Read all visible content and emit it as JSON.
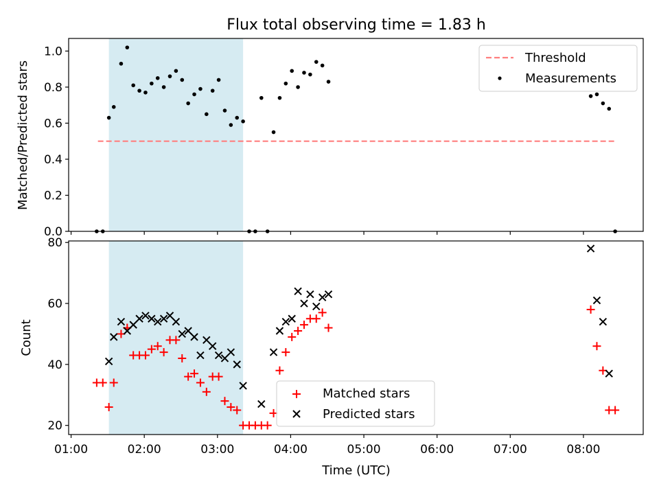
{
  "title": "Flux total observing time = 1.83 h",
  "chart_data": [
    {
      "type": "scatter",
      "panel": "top",
      "ylabel": "Matched/Predicted stars",
      "xlabel": "",
      "xlim": [
        "00:58",
        "08:49"
      ],
      "ylim": [
        0,
        1.07
      ],
      "yticks": [
        0.0,
        0.2,
        0.4,
        0.6,
        0.8,
        1.0
      ],
      "ytick_labels": [
        "0.0",
        "0.2",
        "0.4",
        "0.6",
        "0.8",
        "1.0"
      ],
      "shaded_interval": [
        "01:31",
        "03:21"
      ],
      "shade_color": "#add8e6",
      "legend_position": "upper right",
      "legend": [
        {
          "label": "Threshold",
          "style": "dashed-line",
          "color": "#ff7f7f"
        },
        {
          "label": "Measurements",
          "style": "dot",
          "color": "#000000"
        }
      ],
      "threshold": {
        "name": "Threshold",
        "value": 0.5,
        "x_start": "01:22",
        "x_end": "08:26",
        "color": "#ff7f7f"
      },
      "series": [
        {
          "name": "Measurements",
          "color": "#000000",
          "points": [
            [
              "01:21",
              0
            ],
            [
              "01:26",
              0
            ],
            [
              "01:31",
              0.63
            ],
            [
              "01:35",
              0.69
            ],
            [
              "01:41",
              0.93
            ],
            [
              "01:46",
              1.02
            ],
            [
              "01:51",
              0.81
            ],
            [
              "01:56",
              0.78
            ],
            [
              "02:01",
              0.77
            ],
            [
              "02:06",
              0.82
            ],
            [
              "02:11",
              0.85
            ],
            [
              "02:16",
              0.8
            ],
            [
              "02:21",
              0.86
            ],
            [
              "02:26",
              0.89
            ],
            [
              "02:31",
              0.84
            ],
            [
              "02:36",
              0.71
            ],
            [
              "02:41",
              0.76
            ],
            [
              "02:46",
              0.79
            ],
            [
              "02:51",
              0.65
            ],
            [
              "02:56",
              0.78
            ],
            [
              "03:01",
              0.84
            ],
            [
              "03:06",
              0.67
            ],
            [
              "03:11",
              0.59
            ],
            [
              "03:16",
              0.63
            ],
            [
              "03:21",
              0.61
            ],
            [
              "03:26",
              0
            ],
            [
              "03:31",
              0
            ],
            [
              "03:36",
              0.74
            ],
            [
              "03:41",
              0
            ],
            [
              "03:46",
              0.55
            ],
            [
              "03:51",
              0.74
            ],
            [
              "03:56",
              0.82
            ],
            [
              "04:01",
              0.89
            ],
            [
              "04:06",
              0.8
            ],
            [
              "04:11",
              0.88
            ],
            [
              "04:16",
              0.87
            ],
            [
              "04:21",
              0.94
            ],
            [
              "04:26",
              0.92
            ],
            [
              "04:31",
              0.83
            ],
            [
              "08:06",
              0.75
            ],
            [
              "08:11",
              0.76
            ],
            [
              "08:16",
              0.71
            ],
            [
              "08:21",
              0.68
            ],
            [
              "08:26",
              0
            ]
          ]
        }
      ]
    },
    {
      "type": "scatter",
      "panel": "bottom",
      "ylabel": "Count",
      "xlabel": "Time (UTC)",
      "xlim": [
        "00:58",
        "08:49"
      ],
      "ylim": [
        17,
        80.5
      ],
      "yticks": [
        20,
        40,
        60,
        80
      ],
      "ytick_labels": [
        "20",
        "40",
        "60",
        "80"
      ],
      "xticks": [
        "01:00",
        "02:00",
        "03:00",
        "04:00",
        "05:00",
        "06:00",
        "07:00",
        "08:00"
      ],
      "shaded_interval": [
        "01:31",
        "03:21"
      ],
      "shade_color": "#add8e6",
      "legend_position": "lower center",
      "legend": [
        {
          "label": "Matched stars",
          "style": "plus",
          "color": "#ff0000"
        },
        {
          "label": "Predicted stars",
          "style": "x",
          "color": "#000000"
        }
      ],
      "series": [
        {
          "name": "Matched stars",
          "marker": "+",
          "color": "#ff0000",
          "points": [
            [
              "01:21",
              34
            ],
            [
              "01:26",
              34
            ],
            [
              "01:31",
              26
            ],
            [
              "01:35",
              34
            ],
            [
              "01:41",
              50
            ],
            [
              "01:46",
              52
            ],
            [
              "01:51",
              43
            ],
            [
              "01:56",
              43
            ],
            [
              "02:01",
              43
            ],
            [
              "02:06",
              45
            ],
            [
              "02:11",
              46
            ],
            [
              "02:16",
              44
            ],
            [
              "02:21",
              48
            ],
            [
              "02:26",
              48
            ],
            [
              "02:31",
              42
            ],
            [
              "02:36",
              36
            ],
            [
              "02:41",
              37
            ],
            [
              "02:46",
              34
            ],
            [
              "02:51",
              31
            ],
            [
              "02:56",
              36
            ],
            [
              "03:01",
              36
            ],
            [
              "03:06",
              28
            ],
            [
              "03:11",
              26
            ],
            [
              "03:16",
              25
            ],
            [
              "03:21",
              20
            ],
            [
              "03:26",
              20
            ],
            [
              "03:31",
              20
            ],
            [
              "03:36",
              20
            ],
            [
              "03:41",
              20
            ],
            [
              "03:46",
              24
            ],
            [
              "03:51",
              38
            ],
            [
              "03:56",
              44
            ],
            [
              "04:01",
              49
            ],
            [
              "04:06",
              51
            ],
            [
              "04:11",
              53
            ],
            [
              "04:16",
              55
            ],
            [
              "04:21",
              55
            ],
            [
              "04:26",
              57
            ],
            [
              "04:31",
              52
            ],
            [
              "08:06",
              58
            ],
            [
              "08:11",
              46
            ],
            [
              "08:16",
              38
            ],
            [
              "08:21",
              25
            ],
            [
              "08:26",
              25
            ]
          ]
        },
        {
          "name": "Predicted stars",
          "marker": "x",
          "color": "#000000",
          "points": [
            [
              "01:31",
              41
            ],
            [
              "01:35",
              49
            ],
            [
              "01:41",
              54
            ],
            [
              "01:46",
              51
            ],
            [
              "01:51",
              53
            ],
            [
              "01:56",
              55
            ],
            [
              "02:01",
              56
            ],
            [
              "02:06",
              55
            ],
            [
              "02:11",
              54
            ],
            [
              "02:16",
              55
            ],
            [
              "02:21",
              56
            ],
            [
              "02:26",
              54
            ],
            [
              "02:31",
              50
            ],
            [
              "02:36",
              51
            ],
            [
              "02:41",
              49
            ],
            [
              "02:46",
              43
            ],
            [
              "02:51",
              48
            ],
            [
              "02:56",
              46
            ],
            [
              "03:01",
              43
            ],
            [
              "03:06",
              42
            ],
            [
              "03:11",
              44
            ],
            [
              "03:16",
              40
            ],
            [
              "03:21",
              33
            ],
            [
              "03:36",
              27
            ],
            [
              "03:46",
              44
            ],
            [
              "03:51",
              51
            ],
            [
              "03:56",
              54
            ],
            [
              "04:01",
              55
            ],
            [
              "04:06",
              64
            ],
            [
              "04:11",
              60
            ],
            [
              "04:16",
              63
            ],
            [
              "04:21",
              59
            ],
            [
              "04:26",
              62
            ],
            [
              "04:31",
              63
            ],
            [
              "08:06",
              78
            ],
            [
              "08:11",
              61
            ],
            [
              "08:16",
              54
            ],
            [
              "08:21",
              37
            ]
          ]
        }
      ]
    }
  ]
}
